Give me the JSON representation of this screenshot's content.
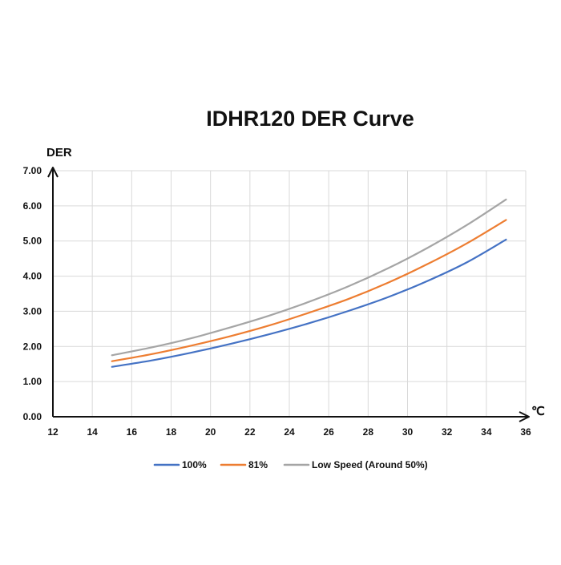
{
  "chart_data": {
    "type": "line",
    "title": "IDHR120  DER Curve",
    "ylabel": "DER",
    "xlabel": "℃",
    "xlim": [
      12,
      36
    ],
    "ylim": [
      0,
      7
    ],
    "x_ticks": [
      12,
      14,
      16,
      18,
      20,
      22,
      24,
      26,
      28,
      30,
      32,
      34,
      36
    ],
    "y_ticks": [
      0,
      1,
      2,
      3,
      4,
      5,
      6,
      7
    ],
    "y_tick_labels": [
      "0.00",
      "1.00",
      "2.00",
      "3.00",
      "4.00",
      "5.00",
      "6.00",
      "7.00"
    ],
    "grid": true,
    "legend_position": "bottom",
    "x": [
      15,
      17,
      19,
      21,
      23,
      25,
      27,
      29,
      31,
      33,
      35
    ],
    "series": [
      {
        "name": "100%",
        "color": "#4472c4",
        "values": [
          1.42,
          1.6,
          1.82,
          2.07,
          2.35,
          2.66,
          3.01,
          3.4,
          3.86,
          4.39,
          5.04
        ]
      },
      {
        "name": "81%",
        "color": "#ed7d31",
        "values": [
          1.58,
          1.78,
          2.02,
          2.29,
          2.6,
          2.96,
          3.35,
          3.81,
          4.34,
          4.93,
          5.6
        ]
      },
      {
        "name": "Low Speed (Around 50%)",
        "color": "#a5a5a5",
        "values": [
          1.75,
          1.97,
          2.23,
          2.54,
          2.88,
          3.27,
          3.71,
          4.22,
          4.8,
          5.45,
          6.18
        ]
      }
    ]
  }
}
